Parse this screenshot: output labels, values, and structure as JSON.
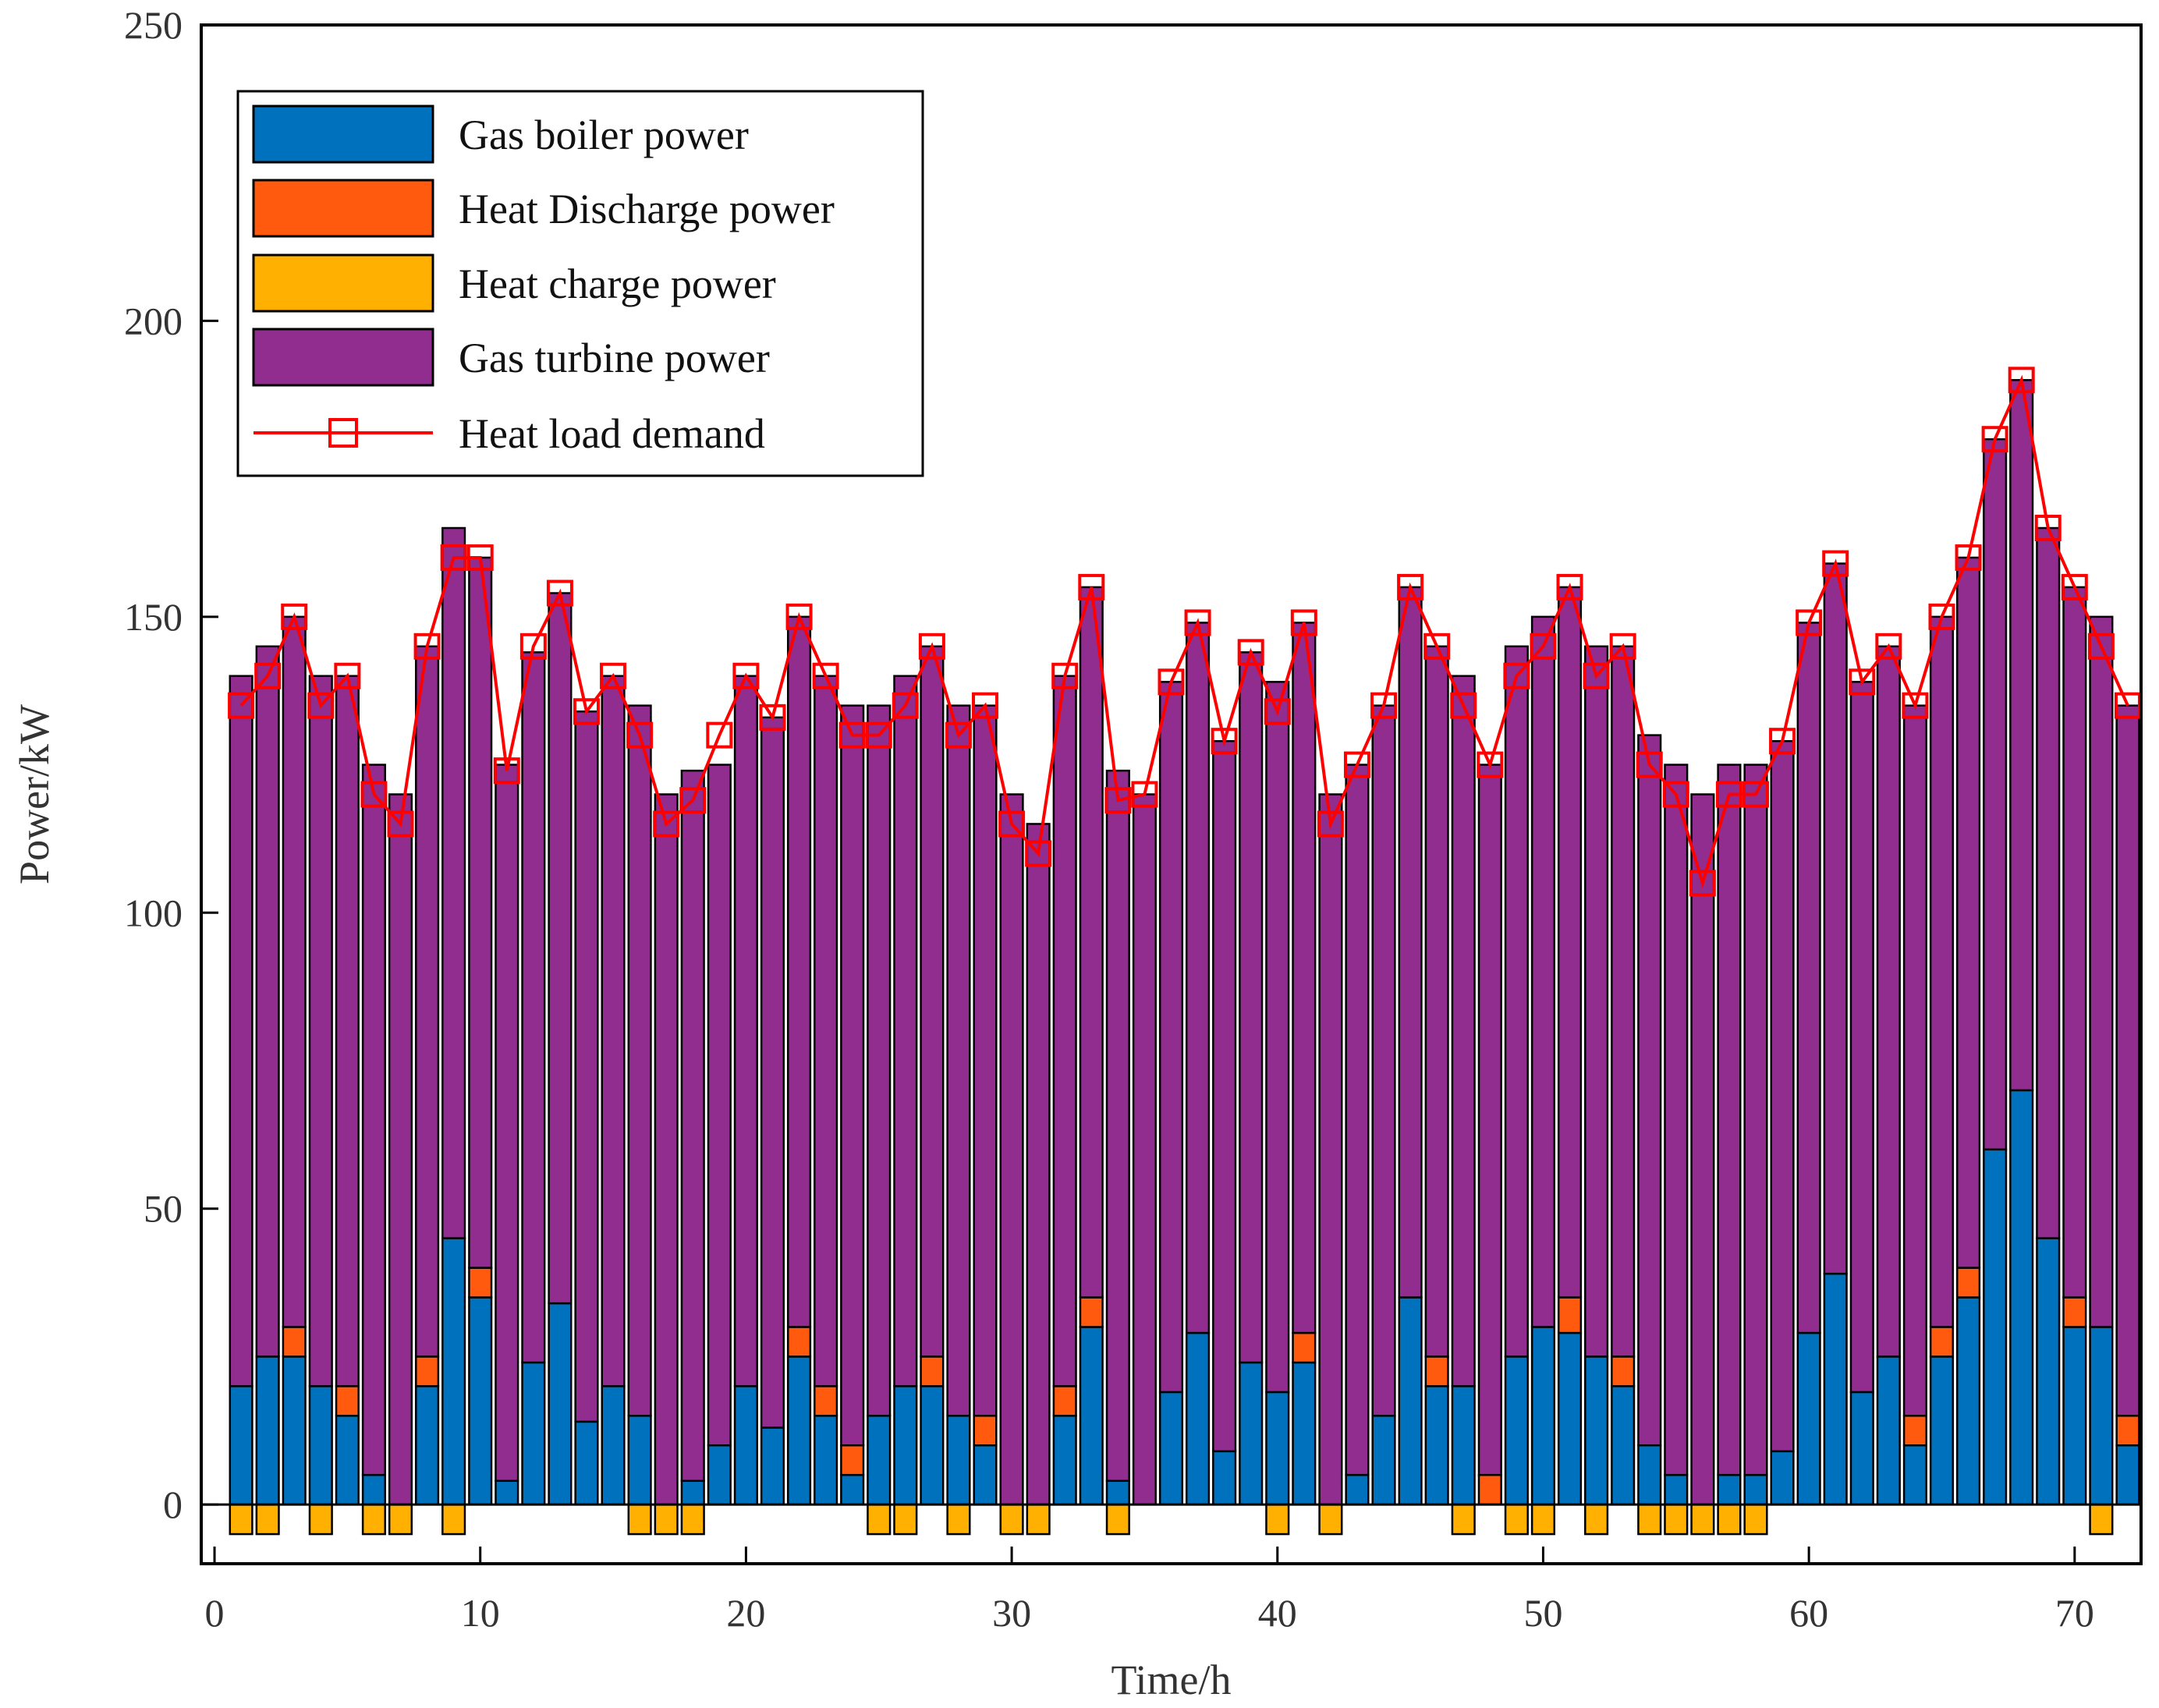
{
  "chart_data": {
    "type": "bar",
    "stacked": true,
    "xlabel": "Time/h",
    "ylabel": "Power/kW",
    "xlim": [
      -0.5,
      72.5
    ],
    "ylim": [
      -10,
      250
    ],
    "xticks": [
      0,
      10,
      20,
      30,
      40,
      50,
      60,
      70
    ],
    "yticks": [
      0,
      50,
      100,
      150,
      200,
      250
    ],
    "grid": false,
    "legend_position": "top-left",
    "x": [
      1,
      2,
      3,
      4,
      5,
      6,
      7,
      8,
      9,
      10,
      11,
      12,
      13,
      14,
      15,
      16,
      17,
      18,
      19,
      20,
      21,
      22,
      23,
      24,
      25,
      26,
      27,
      28,
      29,
      30,
      31,
      32,
      33,
      34,
      35,
      36,
      37,
      38,
      39,
      40,
      41,
      42,
      43,
      44,
      45,
      46,
      47,
      48,
      49,
      50,
      51,
      52,
      53,
      54,
      55,
      56,
      57,
      58,
      59,
      60,
      61,
      62,
      63,
      64,
      65,
      66,
      67,
      68,
      69,
      70,
      71,
      72
    ],
    "series": [
      {
        "name": "Gas boiler power",
        "color": "#0072BD",
        "values": [
          20,
          25,
          25,
          20,
          15,
          5,
          0,
          20,
          45,
          35,
          4,
          24,
          34,
          14,
          20,
          15,
          0,
          4,
          10,
          20,
          13,
          25,
          15,
          5,
          15,
          20,
          20,
          15,
          10,
          0,
          0,
          15,
          30,
          4,
          0,
          19,
          29,
          9,
          24,
          19,
          24,
          0,
          5,
          15,
          35,
          20,
          20,
          0,
          25,
          30,
          29,
          25,
          20,
          10,
          5,
          0,
          5,
          5,
          9,
          29,
          39,
          19,
          25,
          10,
          25,
          35,
          60,
          70,
          45,
          30,
          30,
          10
        ]
      },
      {
        "name": "Heat Discharge power",
        "color": "#FF5A0E",
        "values": [
          0,
          0,
          5,
          0,
          5,
          0,
          0,
          5,
          0,
          5,
          0,
          0,
          0,
          0,
          0,
          0,
          0,
          0,
          0,
          0,
          0,
          5,
          5,
          5,
          0,
          0,
          5,
          0,
          5,
          0,
          0,
          5,
          5,
          0,
          0,
          0,
          0,
          0,
          0,
          0,
          5,
          0,
          0,
          0,
          0,
          5,
          0,
          5,
          0,
          0,
          6,
          0,
          5,
          0,
          0,
          0,
          0,
          0,
          0,
          0,
          0,
          0,
          0,
          5,
          5,
          5,
          0,
          0,
          0,
          5,
          0,
          5
        ]
      },
      {
        "name": "Heat charge power",
        "color": "#FFB000",
        "values": [
          -5,
          -5,
          0,
          -5,
          0,
          -5,
          -5,
          0,
          -5,
          0,
          0,
          0,
          0,
          0,
          0,
          -5,
          -5,
          -5,
          0,
          0,
          0,
          0,
          0,
          0,
          -5,
          -5,
          0,
          -5,
          0,
          -5,
          -5,
          0,
          0,
          -5,
          0,
          0,
          0,
          0,
          0,
          -5,
          0,
          -5,
          0,
          0,
          0,
          0,
          -5,
          0,
          -5,
          -5,
          0,
          -5,
          0,
          -5,
          -5,
          -5,
          -5,
          -5,
          0,
          0,
          0,
          0,
          0,
          0,
          0,
          0,
          0,
          0,
          0,
          0,
          -5,
          0
        ]
      },
      {
        "name": "Gas turbine power",
        "color": "#912D8F",
        "values": [
          120,
          120,
          120,
          120,
          120,
          120,
          120,
          120,
          120,
          120,
          121,
          120,
          120,
          120,
          120,
          120,
          120,
          120,
          115,
          120,
          120,
          120,
          120,
          125,
          120,
          120,
          120,
          120,
          120,
          120,
          115,
          120,
          120,
          120,
          120,
          120,
          120,
          120,
          120,
          120,
          120,
          120,
          120,
          120,
          120,
          120,
          120,
          120,
          120,
          120,
          120,
          120,
          120,
          120,
          120,
          120,
          120,
          120,
          120,
          120,
          120,
          120,
          120,
          120,
          120,
          120,
          120,
          120,
          120,
          120,
          120,
          120
        ]
      },
      {
        "name": "Heat load demand",
        "color": "#FF0000",
        "type": "line",
        "marker": "square",
        "values": [
          135,
          140,
          150,
          135,
          140,
          120,
          115,
          145,
          160,
          160,
          124,
          145,
          154,
          134,
          140,
          130,
          115,
          119,
          130,
          140,
          133,
          150,
          140,
          130,
          130,
          135,
          145,
          130,
          135,
          115,
          110,
          140,
          155,
          119,
          120,
          139,
          149,
          129,
          144,
          134,
          149,
          115,
          125,
          135,
          155,
          145,
          135,
          125,
          140,
          145,
          155,
          140,
          145,
          125,
          120,
          105,
          120,
          120,
          129,
          149,
          159,
          139,
          145,
          135,
          150,
          160,
          180,
          190,
          165,
          155,
          145,
          135
        ]
      }
    ]
  }
}
